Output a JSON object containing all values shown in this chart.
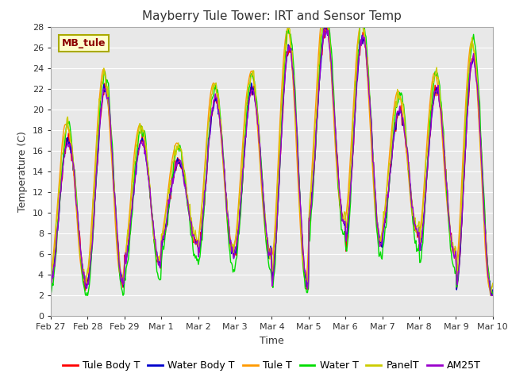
{
  "title": "Mayberry Tule Tower: IRT and Sensor Temp",
  "xlabel": "Time",
  "ylabel": "Temperature (C)",
  "watermark_text": "MB_tule",
  "ylim": [
    0,
    28
  ],
  "yticks": [
    0,
    2,
    4,
    6,
    8,
    10,
    12,
    14,
    16,
    18,
    20,
    22,
    24,
    26,
    28
  ],
  "x_tick_labels": [
    "Feb 27",
    "Feb 28",
    "Feb 29",
    "Mar 1",
    "Mar 2",
    "Mar 3",
    "Mar 4",
    "Mar 5",
    "Mar 6",
    "Mar 7",
    "Mar 8",
    "Mar 9",
    "Mar 10"
  ],
  "series_colors": {
    "Tule Body T": "#ff0000",
    "Water Body T": "#0000cc",
    "Tule T": "#ff9900",
    "Water T": "#00dd00",
    "PanelT": "#cccc00",
    "AM25T": "#9900cc"
  },
  "bg_color": "#e8e8e8",
  "title_fontsize": 11,
  "axis_fontsize": 9,
  "tick_fontsize": 8,
  "legend_fontsize": 9
}
